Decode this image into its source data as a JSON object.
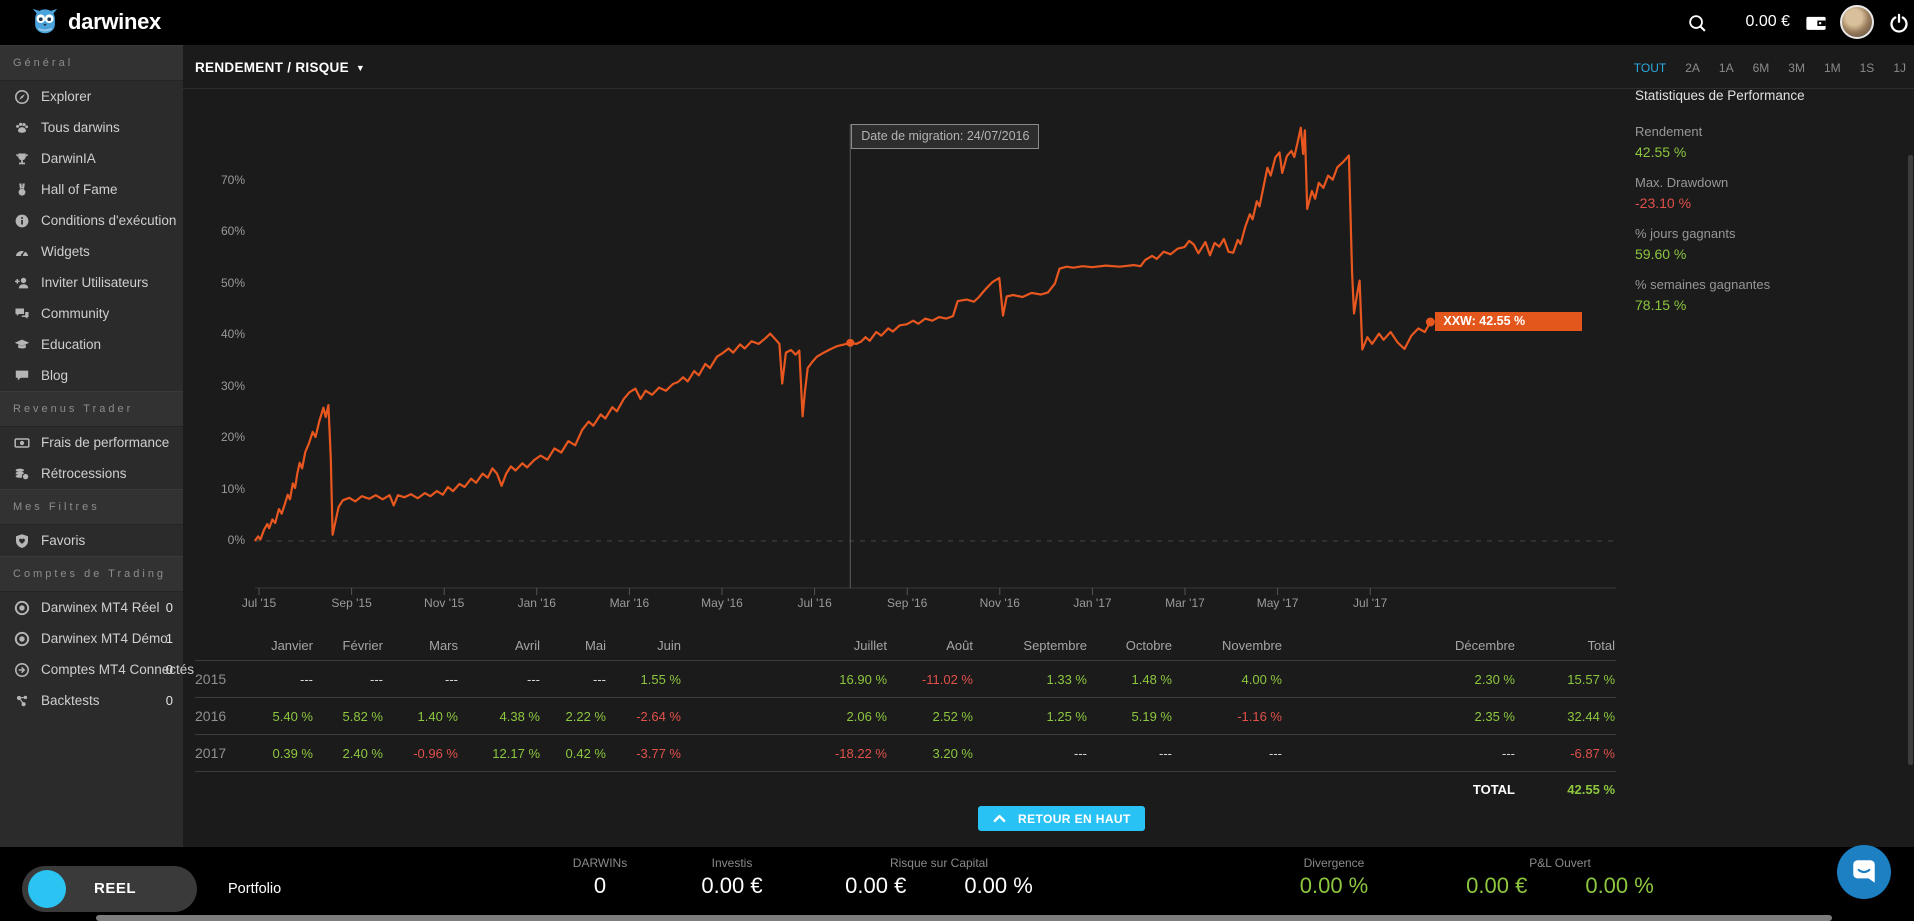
{
  "topbar": {
    "logo_text": "darwinex",
    "balance": "0.00 €"
  },
  "sidebar": {
    "sections": [
      {
        "header": "Général",
        "items": [
          {
            "icon": "compass-icon",
            "label": "Explorer"
          },
          {
            "icon": "paw-icon",
            "label": "Tous darwins"
          },
          {
            "icon": "trophy-icon",
            "label": "DarwinIA"
          },
          {
            "icon": "medal-icon",
            "label": "Hall of Fame"
          },
          {
            "icon": "info-icon",
            "label": "Conditions d'exécution"
          },
          {
            "icon": "gauge-icon",
            "label": "Widgets"
          },
          {
            "icon": "invite-user-icon",
            "label": "Inviter Utilisateurs"
          },
          {
            "icon": "chat-bubbles-icon",
            "label": "Community"
          },
          {
            "icon": "graduation-cap-icon",
            "label": "Education"
          },
          {
            "icon": "speech-bubble-icon",
            "label": "Blog"
          }
        ]
      },
      {
        "header": "Revenus Trader",
        "items": [
          {
            "icon": "banknote-icon",
            "label": "Frais de performance"
          },
          {
            "icon": "coins-icon",
            "label": "Rétrocessions"
          }
        ]
      },
      {
        "header": "Mes Filtres",
        "items": [
          {
            "icon": "heart-shield-icon",
            "label": "Favoris"
          }
        ]
      },
      {
        "header": "Comptes de Trading",
        "items": [
          {
            "icon": "target-icon",
            "label": "Darwinex MT4 Réel",
            "count": "0"
          },
          {
            "icon": "target-icon",
            "label": "Darwinex MT4 Démo",
            "count": "1"
          },
          {
            "icon": "arrow-circle-icon",
            "label": "Comptes MT4 Connectés",
            "count": "0"
          },
          {
            "icon": "molecule-icon",
            "label": "Backtests",
            "count": "0"
          }
        ]
      }
    ]
  },
  "chart_header": {
    "title": "RENDEMENT / RISQUE",
    "ranges": [
      "TOUT",
      "2A",
      "1A",
      "6M",
      "3M",
      "1M",
      "1S",
      "1J"
    ],
    "active_range": "TOUT"
  },
  "chart_data": {
    "type": "line",
    "title": "RENDEMENT / RISQUE",
    "unit": "%",
    "line_color": "#e8571f",
    "ylim": [
      0,
      80
    ],
    "y_ticks": [
      0,
      10,
      20,
      30,
      40,
      50,
      60,
      70
    ],
    "x_ticks": [
      {
        "t": 1,
        "label": "Jul '15"
      },
      {
        "t": 3,
        "label": "Sep '15"
      },
      {
        "t": 5,
        "label": "Nov '15"
      },
      {
        "t": 7,
        "label": "Jan '16"
      },
      {
        "t": 9,
        "label": "Mar '16"
      },
      {
        "t": 11,
        "label": "May '16"
      },
      {
        "t": 13,
        "label": "Jul '16"
      },
      {
        "t": 15,
        "label": "Sep '16"
      },
      {
        "t": 17,
        "label": "Nov '16"
      },
      {
        "t": 19,
        "label": "Jan '17"
      },
      {
        "t": 21,
        "label": "Mar '17"
      },
      {
        "t": 23,
        "label": "May '17"
      },
      {
        "t": 25,
        "label": "Jul '17"
      }
    ],
    "migration": {
      "label": "Date de migration: 24/07/2016",
      "t": 13.77,
      "value": 38.5
    },
    "end_label": "XXW: 42.55 %",
    "end_value": 42.55,
    "series": [
      [
        0.91,
        0
      ],
      [
        0.98,
        0.9
      ],
      [
        1.03,
        0.3
      ],
      [
        1.11,
        2.2
      ],
      [
        1.18,
        3.3
      ],
      [
        1.22,
        2.5
      ],
      [
        1.29,
        4.2
      ],
      [
        1.35,
        3.5
      ],
      [
        1.43,
        6.2
      ],
      [
        1.49,
        5.3
      ],
      [
        1.56,
        7.2
      ],
      [
        1.62,
        9.0
      ],
      [
        1.67,
        8.1
      ],
      [
        1.73,
        11.2
      ],
      [
        1.78,
        10.3
      ],
      [
        1.83,
        13.2
      ],
      [
        1.88,
        15.2
      ],
      [
        1.93,
        14.1
      ],
      [
        2.0,
        17.3
      ],
      [
        2.08,
        19.0
      ],
      [
        2.16,
        21.2
      ],
      [
        2.22,
        20.2
      ],
      [
        2.3,
        23.2
      ],
      [
        2.39,
        25.9
      ],
      [
        2.44,
        24.1
      ],
      [
        2.5,
        26.4
      ],
      [
        2.55,
        16.0
      ],
      [
        2.59,
        1.2
      ],
      [
        2.66,
        4.2
      ],
      [
        2.72,
        6.6
      ],
      [
        2.81,
        7.9
      ],
      [
        2.95,
        8.4
      ],
      [
        3.08,
        7.7
      ],
      [
        3.22,
        8.7
      ],
      [
        3.38,
        8.2
      ],
      [
        3.52,
        8.9
      ],
      [
        3.67,
        8.1
      ],
      [
        3.82,
        8.9
      ],
      [
        3.91,
        6.9
      ],
      [
        4.0,
        8.9
      ],
      [
        4.14,
        8.5
      ],
      [
        4.28,
        9.1
      ],
      [
        4.43,
        8.3
      ],
      [
        4.58,
        9.3
      ],
      [
        4.7,
        8.7
      ],
      [
        4.84,
        9.7
      ],
      [
        4.97,
        9.0
      ],
      [
        5.08,
        10.5
      ],
      [
        5.19,
        9.7
      ],
      [
        5.33,
        11.1
      ],
      [
        5.44,
        10.5
      ],
      [
        5.58,
        12.1
      ],
      [
        5.69,
        11.3
      ],
      [
        5.83,
        13.1
      ],
      [
        5.94,
        12.3
      ],
      [
        6.04,
        14.1
      ],
      [
        6.14,
        13.1
      ],
      [
        6.24,
        10.7
      ],
      [
        6.34,
        13.1
      ],
      [
        6.44,
        14.5
      ],
      [
        6.54,
        13.7
      ],
      [
        6.69,
        15.1
      ],
      [
        6.79,
        14.3
      ],
      [
        6.94,
        15.7
      ],
      [
        7.08,
        16.6
      ],
      [
        7.23,
        15.8
      ],
      [
        7.38,
        18.0
      ],
      [
        7.53,
        17.2
      ],
      [
        7.68,
        19.4
      ],
      [
        7.83,
        18.6
      ],
      [
        7.98,
        21.6
      ],
      [
        8.12,
        23.2
      ],
      [
        8.22,
        22.4
      ],
      [
        8.38,
        24.6
      ],
      [
        8.48,
        23.8
      ],
      [
        8.63,
        26.0
      ],
      [
        8.73,
        25.2
      ],
      [
        8.88,
        27.6
      ],
      [
        9.0,
        28.9
      ],
      [
        9.13,
        29.6
      ],
      [
        9.24,
        27.6
      ],
      [
        9.35,
        29.2
      ],
      [
        9.49,
        28.4
      ],
      [
        9.64,
        29.8
      ],
      [
        9.79,
        29.2
      ],
      [
        9.94,
        30.5
      ],
      [
        10.05,
        30.9
      ],
      [
        10.16,
        31.8
      ],
      [
        10.26,
        31.0
      ],
      [
        10.4,
        33.0
      ],
      [
        10.5,
        32.2
      ],
      [
        10.64,
        34.4
      ],
      [
        10.74,
        33.6
      ],
      [
        10.89,
        35.8
      ],
      [
        11.0,
        36.4
      ],
      [
        11.14,
        37.4
      ],
      [
        11.24,
        36.6
      ],
      [
        11.39,
        38.2
      ],
      [
        11.49,
        37.4
      ],
      [
        11.64,
        38.8
      ],
      [
        11.79,
        38.3
      ],
      [
        11.94,
        39.4
      ],
      [
        12.04,
        40.3
      ],
      [
        12.14,
        39.3
      ],
      [
        12.24,
        38.3
      ],
      [
        12.3,
        30.6
      ],
      [
        12.38,
        36.6
      ],
      [
        12.49,
        37.1
      ],
      [
        12.59,
        36.2
      ],
      [
        12.67,
        37.0
      ],
      [
        12.74,
        24.2
      ],
      [
        12.79,
        29.0
      ],
      [
        12.85,
        33.6
      ],
      [
        12.95,
        34.8
      ],
      [
        13.05,
        35.8
      ],
      [
        13.2,
        36.6
      ],
      [
        13.35,
        37.3
      ],
      [
        13.5,
        37.9
      ],
      [
        13.64,
        38.2
      ],
      [
        13.77,
        38.5
      ],
      [
        13.9,
        38.3
      ],
      [
        14.0,
        38.7
      ],
      [
        14.1,
        39.6
      ],
      [
        14.19,
        38.9
      ],
      [
        14.33,
        40.6
      ],
      [
        14.44,
        39.9
      ],
      [
        14.59,
        41.3
      ],
      [
        14.69,
        40.7
      ],
      [
        14.84,
        41.9
      ],
      [
        14.99,
        42.1
      ],
      [
        15.13,
        42.8
      ],
      [
        15.24,
        42.2
      ],
      [
        15.39,
        43.2
      ],
      [
        15.54,
        42.8
      ],
      [
        15.69,
        43.5
      ],
      [
        15.84,
        43.2
      ],
      [
        15.99,
        43.7
      ],
      [
        16.09,
        46.6
      ],
      [
        16.29,
        46.9
      ],
      [
        16.44,
        46.5
      ],
      [
        16.54,
        47.3
      ],
      [
        16.69,
        48.9
      ],
      [
        16.84,
        50.3
      ],
      [
        16.99,
        51.1
      ],
      [
        17.07,
        43.8
      ],
      [
        17.15,
        47.5
      ],
      [
        17.29,
        47.8
      ],
      [
        17.49,
        47.4
      ],
      [
        17.69,
        48.2
      ],
      [
        17.89,
        47.9
      ],
      [
        18.04,
        48.3
      ],
      [
        18.19,
        50.0
      ],
      [
        18.29,
        52.9
      ],
      [
        18.44,
        53.3
      ],
      [
        18.59,
        53.1
      ],
      [
        18.79,
        53.4
      ],
      [
        18.99,
        53.2
      ],
      [
        19.29,
        53.5
      ],
      [
        19.59,
        53.3
      ],
      [
        19.89,
        53.6
      ],
      [
        20.04,
        53.4
      ],
      [
        20.14,
        54.6
      ],
      [
        20.29,
        55.4
      ],
      [
        20.39,
        54.8
      ],
      [
        20.54,
        56.2
      ],
      [
        20.69,
        55.7
      ],
      [
        20.84,
        56.8
      ],
      [
        20.99,
        57.1
      ],
      [
        21.09,
        58.3
      ],
      [
        21.19,
        57.6
      ],
      [
        21.29,
        55.9
      ],
      [
        21.44,
        58.1
      ],
      [
        21.54,
        55.5
      ],
      [
        21.64,
        57.9
      ],
      [
        21.74,
        57.2
      ],
      [
        21.84,
        58.7
      ],
      [
        21.94,
        56.2
      ],
      [
        22.04,
        56.0
      ],
      [
        22.14,
        58.5
      ],
      [
        22.2,
        57.7
      ],
      [
        22.3,
        61.0
      ],
      [
        22.4,
        63.5
      ],
      [
        22.46,
        62.5
      ],
      [
        22.55,
        66.0
      ],
      [
        22.61,
        65.0
      ],
      [
        22.7,
        69.0
      ],
      [
        22.78,
        72.5
      ],
      [
        22.85,
        71.0
      ],
      [
        22.95,
        74.5
      ],
      [
        23.04,
        75.5
      ],
      [
        23.1,
        71.5
      ],
      [
        23.2,
        74.8
      ],
      [
        23.3,
        75.8
      ],
      [
        23.36,
        74.6
      ],
      [
        23.44,
        77.8
      ],
      [
        23.5,
        80.3
      ],
      [
        23.55,
        75.2
      ],
      [
        23.59,
        79.8
      ],
      [
        23.64,
        64.5
      ],
      [
        23.74,
        68.0
      ],
      [
        23.81,
        66.5
      ],
      [
        23.89,
        69.6
      ],
      [
        23.99,
        68.6
      ],
      [
        24.09,
        71.0
      ],
      [
        24.19,
        70.2
      ],
      [
        24.29,
        72.6
      ],
      [
        24.41,
        73.6
      ],
      [
        24.54,
        74.9
      ],
      [
        24.61,
        52.0
      ],
      [
        24.65,
        44.2
      ],
      [
        24.71,
        47.6
      ],
      [
        24.77,
        50.6
      ],
      [
        24.83,
        37.2
      ],
      [
        24.94,
        39.6
      ],
      [
        25.04,
        38.3
      ],
      [
        25.19,
        40.3
      ],
      [
        25.29,
        39.1
      ],
      [
        25.44,
        40.6
      ],
      [
        25.59,
        38.6
      ],
      [
        25.74,
        37.3
      ],
      [
        25.89,
        39.9
      ],
      [
        26.04,
        41.3
      ],
      [
        26.18,
        40.6
      ],
      [
        26.3,
        42.55
      ]
    ]
  },
  "stats_panel": {
    "title": "Statistiques de Performance",
    "items": [
      {
        "label": "Rendement",
        "value": "42.55 %",
        "tone": "green"
      },
      {
        "label": "Max. Drawdown",
        "value": "-23.10 %",
        "tone": "red"
      },
      {
        "label": "% jours gagnants",
        "value": "59.60 %",
        "tone": "green"
      },
      {
        "label": "% semaines gagnantes",
        "value": "78.15 %",
        "tone": "green"
      }
    ]
  },
  "monthly_table": {
    "month_headers": [
      "Janvier",
      "Février",
      "Mars",
      "Avril",
      "Mai",
      "Juin",
      "Juillet",
      "Août",
      "Septembre",
      "Octobre",
      "Novembre",
      "Décembre",
      "Total"
    ],
    "rows": [
      {
        "year": "2015",
        "values": [
          "---",
          "---",
          "---",
          "---",
          "---",
          "1.55 %",
          "16.90 %",
          "-11.02 %",
          "1.33 %",
          "1.48 %",
          "4.00 %",
          "2.30 %",
          "15.57 %"
        ]
      },
      {
        "year": "2016",
        "values": [
          "5.40 %",
          "5.82 %",
          "1.40 %",
          "4.38 %",
          "2.22 %",
          "-2.64 %",
          "2.06 %",
          "2.52 %",
          "1.25 %",
          "5.19 %",
          "-1.16 %",
          "2.35 %",
          "32.44 %"
        ]
      },
      {
        "year": "2017",
        "values": [
          "0.39 %",
          "2.40 %",
          "-0.96 %",
          "12.17 %",
          "0.42 %",
          "-3.77 %",
          "-18.22 %",
          "3.20 %",
          "---",
          "---",
          "---",
          "---",
          "-6.87 %"
        ]
      }
    ],
    "total_label": "TOTAL",
    "total_value": "42.55 %"
  },
  "back_to_top_label": "RETOUR EN HAUT",
  "footer": {
    "mode_label": "REEL",
    "portfolio_label": "Portfolio",
    "stats": [
      {
        "label": "DARWINs",
        "values": [
          "0"
        ],
        "tone": "white"
      },
      {
        "label": "Investis",
        "values": [
          "0.00 €"
        ],
        "tone": "white"
      },
      {
        "label": "Risque sur Capital",
        "values": [
          "0.00 €",
          "0.00 %"
        ],
        "tone": "white"
      },
      {
        "label": "Divergence",
        "values": [
          "0.00 %"
        ],
        "tone": "green"
      },
      {
        "label": "P&L Ouvert",
        "values": [
          "0.00 €",
          "0.00 %"
        ],
        "tone": "green"
      }
    ]
  },
  "colors": {
    "accent_orange": "#e8571f",
    "green": "#8dc63f",
    "red": "#e0514a",
    "cyan": "#29c2f4"
  }
}
